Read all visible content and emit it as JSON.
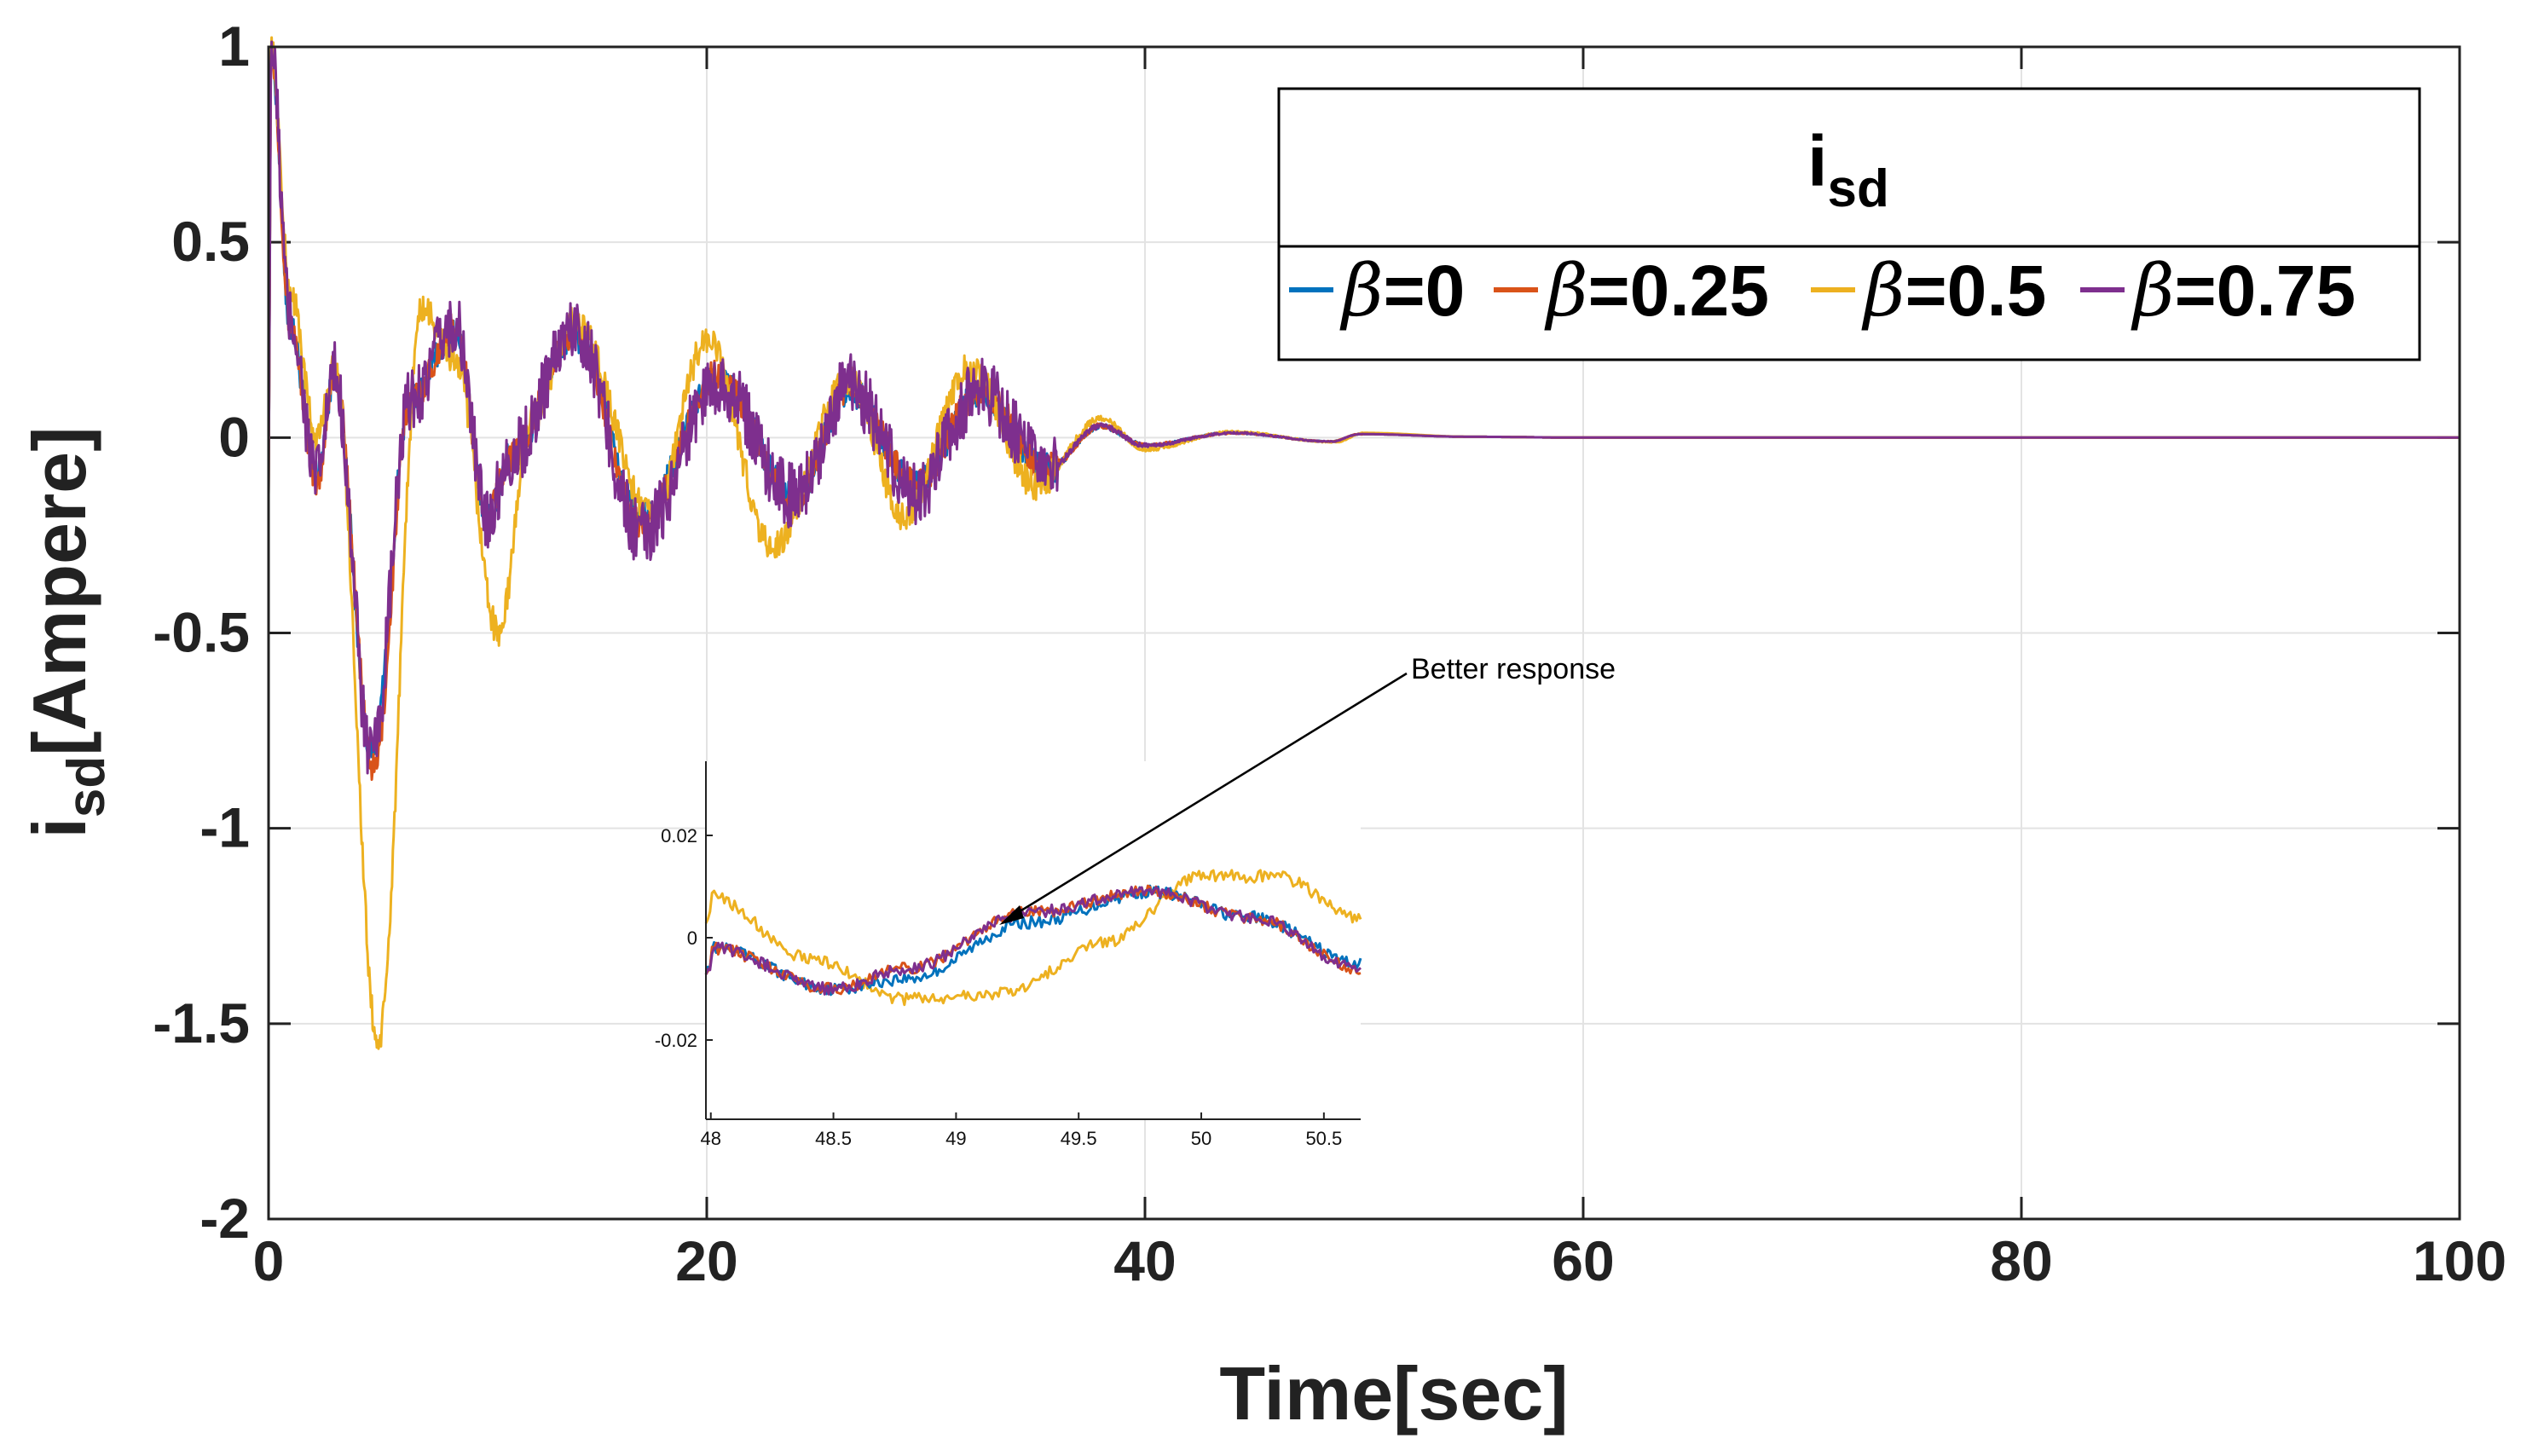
{
  "chart_data": {
    "type": "line",
    "xlabel": "Time[sec]",
    "ylabel": {
      "main": "i",
      "sub": "sd",
      "rest": "[Ampere]"
    },
    "xlim": [
      0,
      100
    ],
    "ylim": [
      -2,
      1
    ],
    "xticks": [
      "0",
      "20",
      "40",
      "60",
      "80",
      "100"
    ],
    "yticks": [
      "-2",
      "-1.5",
      "-1",
      "-0.5",
      "0",
      "0.5",
      "1"
    ],
    "grid": true,
    "legend": {
      "title": {
        "main": "i",
        "sub": "sd"
      },
      "position": "top-right",
      "entries": [
        {
          "symbol": "β",
          "rest": "=0"
        },
        {
          "symbol": "β",
          "rest": "=0.25"
        },
        {
          "symbol": "β",
          "rest": "=0.5"
        },
        {
          "symbol": "β",
          "rest": "=0.75"
        }
      ]
    },
    "series": [
      {
        "name": "β=0",
        "color": "#0072BD",
        "peaks": [
          [
            0.1,
            1.0
          ],
          [
            1.0,
            0.28
          ],
          [
            2.2,
            -0.1
          ],
          [
            3.0,
            0.16
          ],
          [
            4.7,
            -0.8
          ],
          [
            6.5,
            0.1
          ],
          [
            8.5,
            0.27
          ],
          [
            10.0,
            -0.2
          ],
          [
            11.0,
            -0.05
          ],
          [
            14.0,
            0.26
          ],
          [
            17.0,
            -0.2
          ],
          [
            20.5,
            0.15
          ],
          [
            24.0,
            -0.15
          ],
          [
            26.5,
            0.12
          ],
          [
            29.5,
            -0.12
          ],
          [
            32.5,
            0.11
          ],
          [
            35.5,
            -0.08
          ],
          [
            38.0,
            0.03
          ],
          [
            40.0,
            -0.02
          ],
          [
            44.0,
            0.012
          ],
          [
            48.5,
            -0.01
          ],
          [
            49.8,
            0.009
          ],
          [
            55.0,
            0.002
          ],
          [
            60.0,
            0.0
          ],
          [
            100.0,
            0.0
          ]
        ]
      },
      {
        "name": "β=0.25",
        "color": "#D95319",
        "peaks": [
          [
            0.1,
            1.0
          ],
          [
            1.0,
            0.29
          ],
          [
            2.2,
            -0.12
          ],
          [
            3.0,
            0.16
          ],
          [
            4.8,
            -0.85
          ],
          [
            6.5,
            0.1
          ],
          [
            8.5,
            0.28
          ],
          [
            10.0,
            -0.2
          ],
          [
            11.0,
            -0.05
          ],
          [
            14.0,
            0.27
          ],
          [
            17.0,
            -0.22
          ],
          [
            20.5,
            0.16
          ],
          [
            24.0,
            -0.16
          ],
          [
            26.5,
            0.13
          ],
          [
            29.5,
            -0.12
          ],
          [
            32.5,
            0.12
          ],
          [
            35.5,
            -0.08
          ],
          [
            38.0,
            0.03
          ],
          [
            40.0,
            -0.02
          ],
          [
            44.0,
            0.012
          ],
          [
            48.5,
            -0.01
          ],
          [
            49.8,
            0.009
          ],
          [
            55.0,
            0.002
          ],
          [
            60.0,
            0.0
          ],
          [
            100.0,
            0.0
          ]
        ]
      },
      {
        "name": "β=0.5",
        "color": "#EDB120",
        "peaks": [
          [
            0.1,
            1.0
          ],
          [
            1.0,
            0.37
          ],
          [
            2.2,
            0.0
          ],
          [
            3.0,
            0.18
          ],
          [
            5.0,
            -1.55
          ],
          [
            7.0,
            0.33
          ],
          [
            8.5,
            0.2
          ],
          [
            10.5,
            -0.5
          ],
          [
            12.0,
            0.05
          ],
          [
            14.0,
            0.3
          ],
          [
            17.5,
            -0.2
          ],
          [
            20.0,
            0.25
          ],
          [
            23.0,
            -0.28
          ],
          [
            26.5,
            0.15
          ],
          [
            29.0,
            -0.2
          ],
          [
            32.0,
            0.18
          ],
          [
            35.0,
            -0.12
          ],
          [
            38.0,
            0.05
          ],
          [
            40.0,
            -0.03
          ],
          [
            44.0,
            0.015
          ],
          [
            48.7,
            -0.012
          ],
          [
            50.0,
            0.012
          ],
          [
            55.0,
            0.002
          ],
          [
            60.0,
            0.0
          ],
          [
            100.0,
            0.0
          ]
        ]
      },
      {
        "name": "β=0.75",
        "color": "#7E2F8E",
        "peaks": [
          [
            0.1,
            1.0
          ],
          [
            1.0,
            0.3
          ],
          [
            2.2,
            -0.1
          ],
          [
            3.0,
            0.16
          ],
          [
            4.7,
            -0.82
          ],
          [
            6.5,
            0.1
          ],
          [
            8.5,
            0.29
          ],
          [
            10.0,
            -0.2
          ],
          [
            11.0,
            -0.05
          ],
          [
            14.0,
            0.28
          ],
          [
            17.0,
            -0.25
          ],
          [
            20.5,
            0.14
          ],
          [
            24.0,
            -0.15
          ],
          [
            26.5,
            0.13
          ],
          [
            29.5,
            -0.14
          ],
          [
            32.5,
            0.12
          ],
          [
            35.5,
            -0.08
          ],
          [
            38.0,
            0.03
          ],
          [
            40.0,
            -0.02
          ],
          [
            44.0,
            0.012
          ],
          [
            48.5,
            -0.01
          ],
          [
            49.8,
            0.009
          ],
          [
            55.0,
            0.002
          ],
          [
            60.0,
            0.0
          ],
          [
            100.0,
            0.0
          ]
        ]
      }
    ],
    "inset": {
      "xlim": [
        47.98,
        50.65
      ],
      "ylim": [
        -0.0355,
        0.0345
      ],
      "xticks": [
        "48",
        "48.5",
        "49",
        "49.5",
        "50",
        "50.5"
      ],
      "yticks": [
        "-0.02",
        "0",
        "0.02"
      ],
      "series": [
        {
          "name": "β=0",
          "points": [
            [
              48.0,
              -0.002
            ],
            [
              48.5,
              -0.01
            ],
            [
              48.8,
              -0.008
            ],
            [
              49.3,
              0.003
            ],
            [
              49.8,
              0.009
            ],
            [
              50.2,
              0.004
            ],
            [
              50.65,
              -0.005
            ]
          ]
        },
        {
          "name": "β=0.25",
          "points": [
            [
              48.0,
              -0.002
            ],
            [
              48.5,
              -0.01
            ],
            [
              48.8,
              -0.006
            ],
            [
              49.3,
              0.005
            ],
            [
              49.8,
              0.009
            ],
            [
              50.2,
              0.004
            ],
            [
              50.65,
              -0.006
            ]
          ]
        },
        {
          "name": "β=0.5",
          "points": [
            [
              48.0,
              0.008
            ],
            [
              48.4,
              -0.004
            ],
            [
              48.8,
              -0.012
            ],
            [
              49.2,
              -0.011
            ],
            [
              49.6,
              -0.001
            ],
            [
              50.0,
              0.012
            ],
            [
              50.3,
              0.012
            ],
            [
              50.65,
              0.004
            ]
          ]
        },
        {
          "name": "β=0.75",
          "points": [
            [
              48.0,
              -0.002
            ],
            [
              48.5,
              -0.01
            ],
            [
              48.8,
              -0.006
            ],
            [
              49.3,
              0.005
            ],
            [
              49.8,
              0.009
            ],
            [
              50.2,
              0.004
            ],
            [
              50.65,
              -0.006
            ]
          ]
        }
      ]
    },
    "annotation": {
      "text": "Better response"
    }
  }
}
